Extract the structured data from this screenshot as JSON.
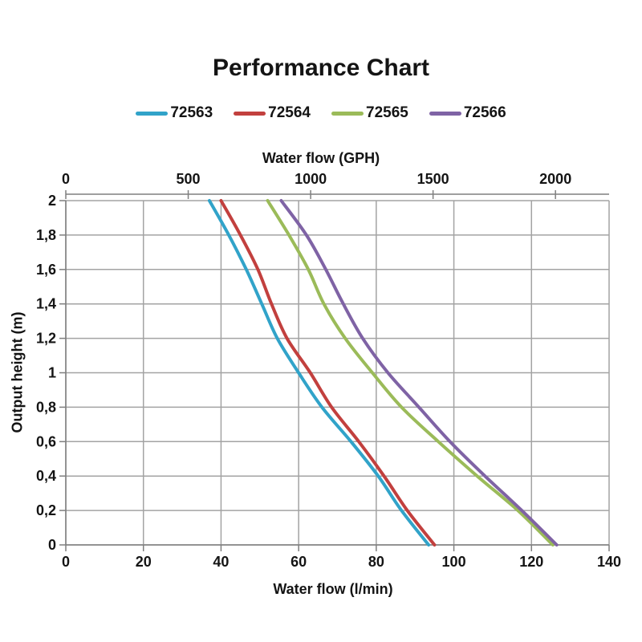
{
  "title": "Performance Chart",
  "colors": {
    "background": "#ffffff",
    "gridline": "#a3a3a3",
    "axis": "#7f7f7f",
    "text": "#141414"
  },
  "chart_data": {
    "type": "line",
    "title": "Performance Chart",
    "xlabel": "Water flow (l/min)",
    "ylabel": "Output height (m)",
    "grid": true,
    "legend_position": "top",
    "top_axis": {
      "label": "Water flow (GPH)",
      "min": 0,
      "max": 2219,
      "ticks": [
        0,
        500,
        1000,
        1500,
        2000
      ]
    },
    "x_axis": {
      "min": 0,
      "max": 140,
      "ticks": [
        0,
        20,
        40,
        60,
        80,
        100,
        120,
        140
      ]
    },
    "y_axis": {
      "min": 0,
      "max": 2,
      "ticks": [
        2,
        1.8,
        1.6,
        1.4,
        1.2,
        1,
        0.8,
        0.6,
        0.4,
        0.2,
        0
      ],
      "tick_labels": [
        "2",
        "1,8",
        "1,6",
        "1,4",
        "1,2",
        "1",
        "0,8",
        "0,6",
        "0,4",
        "0,2",
        "0"
      ]
    },
    "heights_m": [
      2,
      1.8,
      1.6,
      1.4,
      1.2,
      1,
      0.8,
      0.6,
      0.4,
      0.2,
      0
    ],
    "series": [
      {
        "name": "72563",
        "color": "#31a3c9",
        "flow_l_min": [
          37,
          42,
          46.5,
          50.5,
          54.5,
          60,
          66,
          73.5,
          80.5,
          86.5,
          93.5
        ]
      },
      {
        "name": "72564",
        "color": "#c2403e",
        "flow_l_min": [
          40,
          45,
          49.5,
          53,
          57,
          63,
          68.5,
          75.5,
          82,
          88,
          95
        ]
      },
      {
        "name": "72565",
        "color": "#9bbb59",
        "flow_l_min": [
          52,
          57.5,
          62.5,
          66.5,
          72,
          79,
          86.5,
          96,
          106,
          116.5,
          125.5
        ]
      },
      {
        "name": "72566",
        "color": "#7f63a5",
        "flow_l_min": [
          55.5,
          62,
          67,
          71.5,
          76.5,
          83,
          91,
          99,
          108,
          117.5,
          126.5
        ]
      }
    ]
  }
}
